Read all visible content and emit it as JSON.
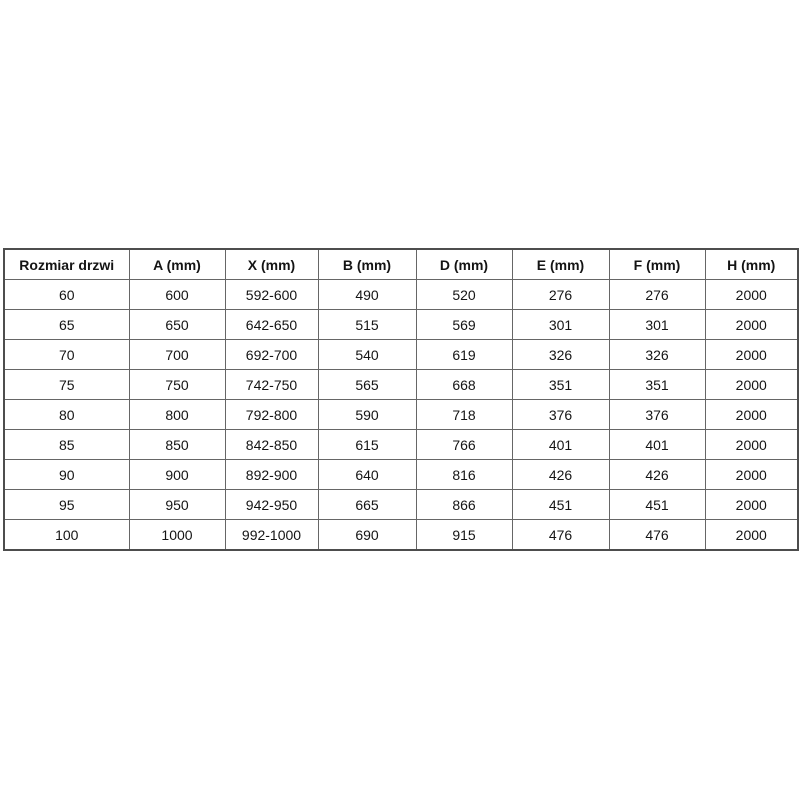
{
  "table": {
    "headers": [
      "Rozmiar drzwi",
      "A (mm)",
      "X (mm)",
      "B (mm)",
      "D (mm)",
      "E (mm)",
      "F (mm)",
      "H (mm)"
    ],
    "rows": [
      [
        "60",
        "600",
        "592-600",
        "490",
        "520",
        "276",
        "276",
        "2000"
      ],
      [
        "65",
        "650",
        "642-650",
        "515",
        "569",
        "301",
        "301",
        "2000"
      ],
      [
        "70",
        "700",
        "692-700",
        "540",
        "619",
        "326",
        "326",
        "2000"
      ],
      [
        "75",
        "750",
        "742-750",
        "565",
        "668",
        "351",
        "351",
        "2000"
      ],
      [
        "80",
        "800",
        "792-800",
        "590",
        "718",
        "376",
        "376",
        "2000"
      ],
      [
        "85",
        "850",
        "842-850",
        "615",
        "766",
        "401",
        "401",
        "2000"
      ],
      [
        "90",
        "900",
        "892-900",
        "640",
        "816",
        "426",
        "426",
        "2000"
      ],
      [
        "95",
        "950",
        "942-950",
        "665",
        "866",
        "451",
        "451",
        "2000"
      ],
      [
        "100",
        "1000",
        "992-1000",
        "690",
        "915",
        "476",
        "476",
        "2000"
      ]
    ],
    "colors": {
      "background": "#ffffff",
      "text": "#141414",
      "border_inner": "#666666",
      "border_outer": "#4d4d4d"
    }
  },
  "chart_data": {
    "type": "table",
    "title": "",
    "columns": [
      "Rozmiar drzwi",
      "A (mm)",
      "X (mm)",
      "B (mm)",
      "D (mm)",
      "E (mm)",
      "F (mm)",
      "H (mm)"
    ],
    "rows": [
      [
        "60",
        "600",
        "592-600",
        "490",
        "520",
        "276",
        "276",
        "2000"
      ],
      [
        "65",
        "650",
        "642-650",
        "515",
        "569",
        "301",
        "301",
        "2000"
      ],
      [
        "70",
        "700",
        "692-700",
        "540",
        "619",
        "326",
        "326",
        "2000"
      ],
      [
        "75",
        "750",
        "742-750",
        "565",
        "668",
        "351",
        "351",
        "2000"
      ],
      [
        "80",
        "800",
        "792-800",
        "590",
        "718",
        "376",
        "376",
        "2000"
      ],
      [
        "85",
        "850",
        "842-850",
        "615",
        "766",
        "401",
        "401",
        "2000"
      ],
      [
        "90",
        "900",
        "892-900",
        "640",
        "816",
        "426",
        "426",
        "2000"
      ],
      [
        "95",
        "950",
        "942-950",
        "665",
        "866",
        "451",
        "451",
        "2000"
      ],
      [
        "100",
        "1000",
        "992-1000",
        "690",
        "915",
        "476",
        "476",
        "2000"
      ]
    ]
  }
}
